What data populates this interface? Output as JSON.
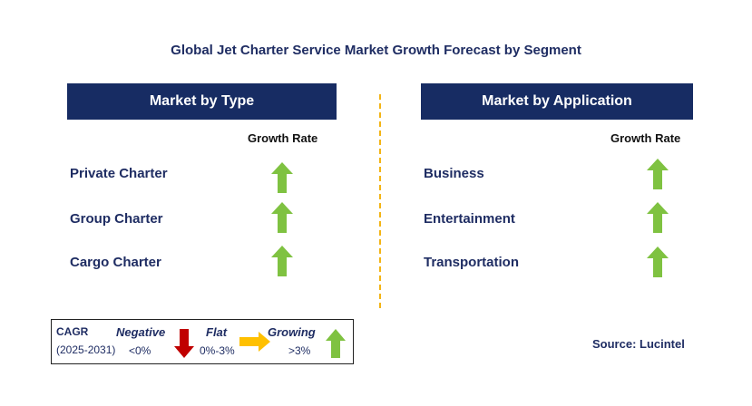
{
  "title": "Global Jet Charter Service Market Growth Forecast by Segment",
  "left_panel": {
    "header": "Market by Type",
    "growth_label": "Growth Rate",
    "segments": [
      {
        "label": "Private Charter",
        "trend": "growing"
      },
      {
        "label": "Group Charter",
        "trend": "growing"
      },
      {
        "label": "Cargo Charter",
        "trend": "growing"
      }
    ]
  },
  "right_panel": {
    "header": "Market by Application",
    "growth_label": "Growth Rate",
    "segments": [
      {
        "label": "Business",
        "trend": "growing"
      },
      {
        "label": "Entertainment",
        "trend": "growing"
      },
      {
        "label": "Transportation",
        "trend": "growing"
      }
    ]
  },
  "legend": {
    "cagr_label": "CAGR",
    "period": "(2025-2031)",
    "negative": {
      "label": "Negative",
      "range": "<0%",
      "color": "#c00000",
      "icon": "down-arrow-icon"
    },
    "flat": {
      "label": "Flat",
      "range": "0%-3%",
      "color": "#ffc000",
      "icon": "right-arrow-icon"
    },
    "growing": {
      "label": "Growing",
      "range": ">3%",
      "color": "#7fc241",
      "icon": "up-arrow-icon"
    }
  },
  "source": "Source: Lucintel",
  "colors": {
    "header_bg": "#172c63",
    "text": "#1f2d63",
    "divider": "#f3b415",
    "growth_arrow": "#7fc241"
  }
}
